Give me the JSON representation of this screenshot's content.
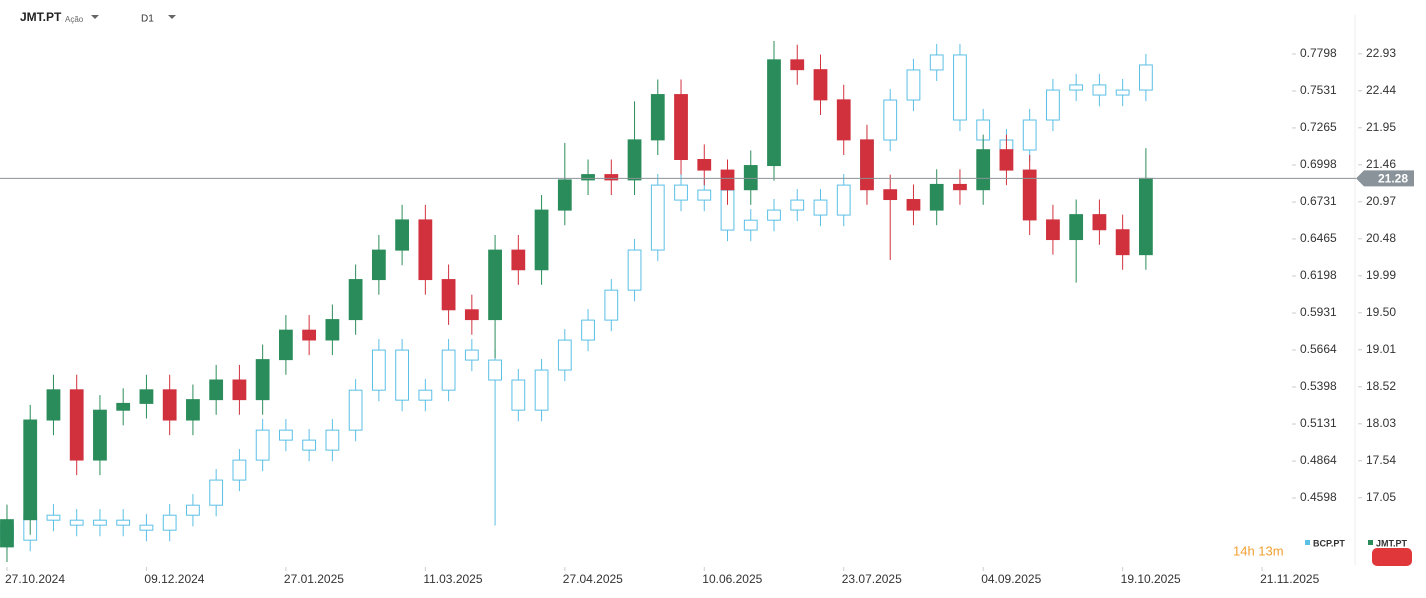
{
  "header": {
    "symbol": "JMT.PT",
    "asset_type": "Ação",
    "timeframe": "D1"
  },
  "countdown": "14h 13m",
  "chart_data": {
    "type": "candlestick",
    "x": [
      0,
      5,
      10,
      15,
      20,
      25,
      30,
      35,
      40,
      45,
      50,
      55,
      60,
      65,
      70,
      75,
      80,
      85,
      90,
      95,
      100,
      105,
      110,
      115,
      120,
      125,
      130,
      135,
      140,
      145,
      150,
      155,
      160,
      165,
      170,
      175,
      180,
      185,
      190,
      195,
      200,
      205,
      210,
      215,
      220,
      225,
      230,
      235,
      240,
      245
    ],
    "xlim": [
      -1.5,
      276
    ],
    "xticks": [
      {
        "value": 0,
        "label": "27.10.2024"
      },
      {
        "value": 30,
        "label": "09.12.2024"
      },
      {
        "value": 60,
        "label": "27.01.2025"
      },
      {
        "value": 90,
        "label": "11.03.2025"
      },
      {
        "value": 120,
        "label": "27.04.2025"
      },
      {
        "value": 150,
        "label": "10.06.2025"
      },
      {
        "value": 180,
        "label": "23.07.2025"
      },
      {
        "value": 210,
        "label": "04.09.2025"
      },
      {
        "value": 240,
        "label": "19.10.2025"
      },
      {
        "value": 270,
        "label": "21.11.2025"
      }
    ],
    "ylim": [
      0.4115,
      0.8115
    ],
    "yticks": [
      0.4598,
      0.4864,
      0.5131,
      0.5398,
      0.5664,
      0.5931,
      0.6198,
      0.6465,
      0.6731,
      0.6998,
      0.7265,
      0.7531,
      0.7798
    ],
    "y2lim": [
      16.16,
      23.51
    ],
    "y2ticks": [
      17.05,
      17.54,
      18.03,
      18.52,
      19.01,
      {
        "value": 19.5,
        "label": "19.50"
      },
      19.99,
      20.48,
      20.97,
      21.46,
      21.95,
      22.44,
      22.93
    ],
    "price_line": 21.28,
    "series": [
      {
        "name": "BCP.PT",
        "axis": "y",
        "color": "#5bbfe6",
        "open": [
          0.44,
          0.4294,
          0.4474,
          0.4438,
          0.4402,
          0.4438,
          0.4402,
          0.4366,
          0.4474,
          0.4546,
          0.4727,
          0.4871,
          0.5087,
          0.5015,
          0.4943,
          0.5087,
          0.5375,
          0.5664,
          0.5303,
          0.5375,
          0.5664,
          0.5592,
          0.5448,
          0.5231,
          0.552,
          0.5736,
          0.588,
          0.6096,
          0.6385,
          0.6853,
          0.6745,
          0.6817,
          0.6529,
          0.66,
          0.6673,
          0.6745,
          0.6637,
          0.6853,
          0.7178,
          0.7466,
          0.7683,
          0.7791,
          0.7322,
          0.7178,
          0.7106,
          0.7322,
          0.7538,
          0.7575,
          0.7502,
          0.7538
        ],
        "high": [
          0.448,
          0.4554,
          0.4554,
          0.4518,
          0.4518,
          0.4518,
          0.4482,
          0.4554,
          0.4626,
          0.4807,
          0.4951,
          0.5167,
          0.5167,
          0.5095,
          0.5167,
          0.5455,
          0.5744,
          0.5744,
          0.5455,
          0.5744,
          0.5744,
          0.5672,
          0.5528,
          0.56,
          0.5816,
          0.596,
          0.6176,
          0.6465,
          0.6933,
          0.6933,
          0.6897,
          0.6897,
          0.668,
          0.6753,
          0.6825,
          0.6825,
          0.6933,
          0.7258,
          0.7546,
          0.7763,
          0.7871,
          0.7871,
          0.7402,
          0.7258,
          0.7402,
          0.7618,
          0.7655,
          0.7655,
          0.7618,
          0.7799
        ],
        "low": [
          0.4214,
          0.4214,
          0.4358,
          0.4322,
          0.4322,
          0.4322,
          0.4286,
          0.4286,
          0.4394,
          0.4466,
          0.4647,
          0.4791,
          0.4935,
          0.4863,
          0.4863,
          0.5007,
          0.5295,
          0.5223,
          0.5223,
          0.5295,
          0.5512,
          0.44,
          0.5151,
          0.5151,
          0.544,
          0.5656,
          0.58,
          0.6016,
          0.6305,
          0.6665,
          0.6665,
          0.6449,
          0.6449,
          0.652,
          0.6593,
          0.6557,
          0.6557,
          0.6773,
          0.7098,
          0.7386,
          0.7603,
          0.7242,
          0.7098,
          0.7026,
          0.7026,
          0.7242,
          0.7458,
          0.7422,
          0.7422,
          0.7458
        ],
        "close": [
          0.4294,
          0.4474,
          0.4438,
          0.4402,
          0.4438,
          0.4402,
          0.4366,
          0.4474,
          0.4546,
          0.4727,
          0.4871,
          0.5087,
          0.5015,
          0.4943,
          0.5087,
          0.5375,
          0.5664,
          0.5303,
          0.5375,
          0.5664,
          0.5592,
          0.5448,
          0.5231,
          0.552,
          0.5736,
          0.588,
          0.6096,
          0.6385,
          0.6853,
          0.6745,
          0.6817,
          0.6529,
          0.66,
          0.6673,
          0.6745,
          0.6637,
          0.6853,
          0.7178,
          0.7466,
          0.7683,
          0.7791,
          0.7322,
          0.7178,
          0.7106,
          0.7322,
          0.7538,
          0.7575,
          0.7502,
          0.7538,
          0.7719
        ]
      },
      {
        "name": "JMT.PT",
        "axis": "y2",
        "color": "#2a8c5a",
        "down_color": "#d0313d",
        "open": [
          16.4,
          16.76,
          18.08,
          18.48,
          17.55,
          18.21,
          18.3,
          18.48,
          18.08,
          18.35,
          18.61,
          18.35,
          18.88,
          19.27,
          19.14,
          19.41,
          19.94,
          20.33,
          20.73,
          19.94,
          19.54,
          19.41,
          20.33,
          20.07,
          20.86,
          21.26,
          21.33,
          21.26,
          21.79,
          22.39,
          21.53,
          21.39,
          21.13,
          21.45,
          22.85,
          22.72,
          22.32,
          21.79,
          21.13,
          21.0,
          20.86,
          21.2,
          21.13,
          21.66,
          21.39,
          20.73,
          20.47,
          20.8,
          20.6,
          20.27
        ],
        "high": [
          16.96,
          18.28,
          18.68,
          18.68,
          18.41,
          18.5,
          18.68,
          18.68,
          18.55,
          18.81,
          18.81,
          19.08,
          19.47,
          19.47,
          19.61,
          20.14,
          20.53,
          20.93,
          20.93,
          20.14,
          19.74,
          20.53,
          20.53,
          21.06,
          21.75,
          21.53,
          21.53,
          22.3,
          22.59,
          22.59,
          21.73,
          21.53,
          21.65,
          23.1,
          23.05,
          22.92,
          22.52,
          21.99,
          21.33,
          21.2,
          21.4,
          21.4,
          21.86,
          21.86,
          21.59,
          20.93,
          21.0,
          21.0,
          20.8,
          21.68
        ],
        "low": [
          16.2,
          16.56,
          17.88,
          17.35,
          17.35,
          18.01,
          18.1,
          17.88,
          17.88,
          18.15,
          18.15,
          18.15,
          18.68,
          18.94,
          18.94,
          19.21,
          19.74,
          20.13,
          19.74,
          19.34,
          19.21,
          18.9,
          19.87,
          19.87,
          20.66,
          21.06,
          21.06,
          21.06,
          21.59,
          21.33,
          21.19,
          20.93,
          20.93,
          21.25,
          22.52,
          22.12,
          21.59,
          20.93,
          20.2,
          20.66,
          20.66,
          20.93,
          20.93,
          21.19,
          20.53,
          20.27,
          19.9,
          20.4,
          20.07,
          20.07
        ],
        "close": [
          16.76,
          18.08,
          18.48,
          17.55,
          18.21,
          18.3,
          18.48,
          18.08,
          18.35,
          18.61,
          18.35,
          18.88,
          19.27,
          19.14,
          19.41,
          19.94,
          20.33,
          20.73,
          19.94,
          19.54,
          19.41,
          20.33,
          20.07,
          20.86,
          21.26,
          21.33,
          21.26,
          21.79,
          22.39,
          21.53,
          21.39,
          21.13,
          21.45,
          22.85,
          22.72,
          22.32,
          21.79,
          21.13,
          21.0,
          20.86,
          21.2,
          21.13,
          21.66,
          21.39,
          20.73,
          20.47,
          20.8,
          20.6,
          20.27,
          21.28
        ]
      }
    ]
  }
}
